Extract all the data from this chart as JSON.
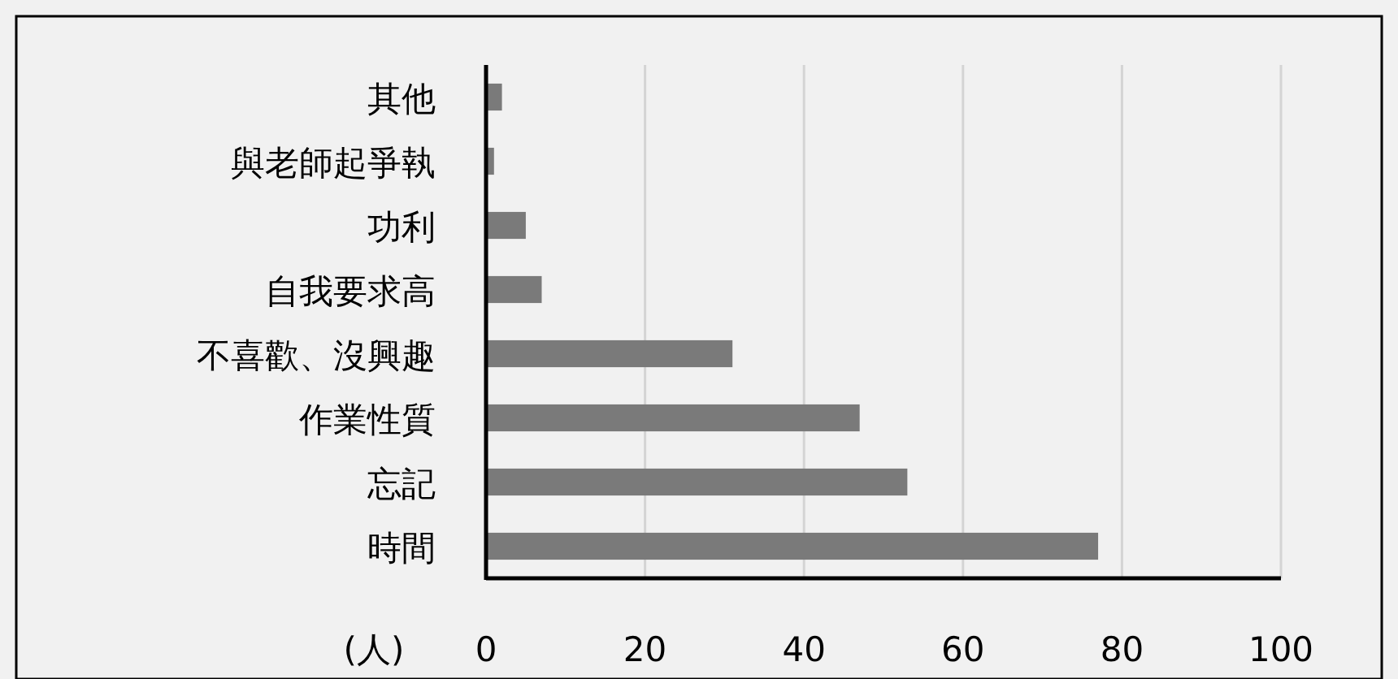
{
  "chart_data": {
    "type": "bar",
    "orientation": "horizontal",
    "xlabel": "(人)",
    "categories": [
      "其他",
      "與老師起爭執",
      "功利",
      "自我要求高",
      "不喜歡、沒興趣",
      "作業性質",
      "忘記",
      "時間"
    ],
    "values": [
      2,
      1,
      5,
      7,
      31,
      47,
      53,
      77
    ],
    "color": "#7a7a7a",
    "xlim": [
      0,
      100
    ],
    "xticks": [
      0,
      20,
      40,
      60,
      80,
      100
    ],
    "grid": "x"
  }
}
